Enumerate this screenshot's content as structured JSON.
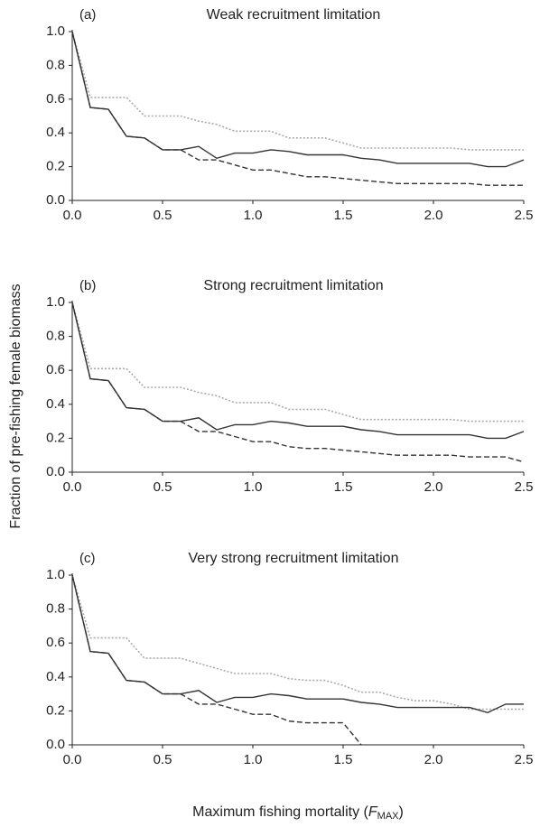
{
  "chart_data": [
    {
      "type": "line",
      "label": "(a)",
      "title": "Weak recruitment limitation",
      "x": [
        0,
        0.1,
        0.2,
        0.3,
        0.4,
        0.5,
        0.6,
        0.7,
        0.8,
        0.9,
        1.0,
        1.1,
        1.2,
        1.3,
        1.4,
        1.5,
        1.6,
        1.7,
        1.8,
        1.9,
        2.0,
        2.1,
        2.2,
        2.3,
        2.4,
        2.5
      ],
      "series": [
        {
          "color": "#aaaaaa",
          "style": "dotted",
          "values": [
            1.0,
            0.61,
            0.61,
            0.61,
            0.5,
            0.5,
            0.5,
            0.47,
            0.45,
            0.41,
            0.41,
            0.41,
            0.37,
            0.37,
            0.37,
            0.34,
            0.31,
            0.31,
            0.31,
            0.31,
            0.31,
            0.31,
            0.3,
            0.3,
            0.3,
            0.3
          ]
        },
        {
          "color": "#333333",
          "style": "dashed",
          "values": [
            1.0,
            0.55,
            0.54,
            0.38,
            0.37,
            0.3,
            0.3,
            0.24,
            0.24,
            0.21,
            0.18,
            0.18,
            0.16,
            0.14,
            0.14,
            0.13,
            0.12,
            0.11,
            0.1,
            0.1,
            0.1,
            0.1,
            0.1,
            0.09,
            0.09,
            0.09
          ]
        },
        {
          "color": "#333333",
          "style": "solid",
          "values": [
            1.0,
            0.55,
            0.54,
            0.38,
            0.37,
            0.3,
            0.3,
            0.32,
            0.25,
            0.28,
            0.28,
            0.3,
            0.29,
            0.27,
            0.27,
            0.27,
            0.25,
            0.24,
            0.22,
            0.22,
            0.22,
            0.22,
            0.22,
            0.2,
            0.2,
            0.24
          ]
        }
      ],
      "xlim": [
        0,
        2.5
      ],
      "ylim": [
        0,
        1
      ],
      "xticks": [
        {
          "value": 0,
          "label": "0.0"
        },
        0.5,
        {
          "value": 1,
          "label": "1.0"
        },
        1.5,
        {
          "value": 2,
          "label": "2.0"
        },
        2.5
      ],
      "yticks": [
        {
          "value": 0,
          "label": "0.0"
        },
        0.2,
        0.4,
        0.6,
        0.8,
        {
          "value": 1,
          "label": "1.0"
        }
      ]
    },
    {
      "type": "line",
      "label": "(b)",
      "title": "Strong recruitment limitation",
      "x": [
        0,
        0.1,
        0.2,
        0.3,
        0.4,
        0.5,
        0.6,
        0.7,
        0.8,
        0.9,
        1.0,
        1.1,
        1.2,
        1.3,
        1.4,
        1.5,
        1.6,
        1.7,
        1.8,
        1.9,
        2.0,
        2.1,
        2.2,
        2.3,
        2.4,
        2.5
      ],
      "series": [
        {
          "color": "#aaaaaa",
          "style": "dotted",
          "values": [
            1.0,
            0.61,
            0.61,
            0.61,
            0.5,
            0.5,
            0.5,
            0.47,
            0.45,
            0.41,
            0.41,
            0.41,
            0.37,
            0.37,
            0.37,
            0.34,
            0.31,
            0.31,
            0.31,
            0.31,
            0.31,
            0.31,
            0.3,
            0.3,
            0.3,
            0.3
          ]
        },
        {
          "color": "#333333",
          "style": "dashed",
          "values": [
            1.0,
            0.55,
            0.54,
            0.38,
            0.37,
            0.3,
            0.3,
            0.24,
            0.24,
            0.21,
            0.18,
            0.18,
            0.15,
            0.14,
            0.14,
            0.13,
            0.12,
            0.11,
            0.1,
            0.1,
            0.1,
            0.1,
            0.09,
            0.09,
            0.09,
            0.06
          ]
        },
        {
          "color": "#333333",
          "style": "solid",
          "values": [
            1.0,
            0.55,
            0.54,
            0.38,
            0.37,
            0.3,
            0.3,
            0.32,
            0.25,
            0.28,
            0.28,
            0.3,
            0.29,
            0.27,
            0.27,
            0.27,
            0.25,
            0.24,
            0.22,
            0.22,
            0.22,
            0.22,
            0.22,
            0.2,
            0.2,
            0.24
          ]
        }
      ],
      "xlim": [
        0,
        2.5
      ],
      "ylim": [
        0,
        1
      ],
      "xticks": [
        {
          "value": 0,
          "label": "0.0"
        },
        0.5,
        {
          "value": 1,
          "label": "1.0"
        },
        1.5,
        {
          "value": 2,
          "label": "2.0"
        },
        2.5
      ],
      "yticks": [
        {
          "value": 0,
          "label": "0.0"
        },
        0.2,
        0.4,
        0.6,
        0.8,
        {
          "value": 1,
          "label": "1.0"
        }
      ]
    },
    {
      "type": "line",
      "label": "(c)",
      "title": "Very strong recruitment limitation",
      "x": [
        0,
        0.1,
        0.2,
        0.3,
        0.4,
        0.5,
        0.6,
        0.7,
        0.8,
        0.9,
        1.0,
        1.1,
        1.2,
        1.3,
        1.4,
        1.5,
        1.6,
        1.7,
        1.8,
        1.9,
        2.0,
        2.1,
        2.2,
        2.3,
        2.4,
        2.5
      ],
      "series": [
        {
          "color": "#aaaaaa",
          "style": "dotted",
          "values": [
            1.0,
            0.63,
            0.63,
            0.63,
            0.51,
            0.51,
            0.51,
            0.48,
            0.45,
            0.42,
            0.42,
            0.42,
            0.39,
            0.38,
            0.38,
            0.35,
            0.31,
            0.31,
            0.28,
            0.26,
            0.26,
            0.24,
            0.21,
            0.21,
            0.21,
            0.21
          ]
        },
        {
          "color": "#333333",
          "style": "dashed",
          "values": [
            1.0,
            0.55,
            0.54,
            0.38,
            0.37,
            0.3,
            0.3,
            0.24,
            0.24,
            0.21,
            0.18,
            0.18,
            0.14,
            0.13,
            0.13,
            0.13,
            0.0,
            null,
            null,
            null,
            null,
            null,
            null,
            null,
            null,
            null
          ]
        },
        {
          "color": "#333333",
          "style": "solid",
          "values": [
            1.0,
            0.55,
            0.54,
            0.38,
            0.37,
            0.3,
            0.3,
            0.32,
            0.25,
            0.28,
            0.28,
            0.3,
            0.29,
            0.27,
            0.27,
            0.27,
            0.25,
            0.24,
            0.22,
            0.22,
            0.22,
            0.22,
            0.22,
            0.19,
            0.24,
            0.24
          ]
        }
      ],
      "xlim": [
        0,
        2.5
      ],
      "ylim": [
        0,
        1
      ],
      "xticks": [
        {
          "value": 0,
          "label": "0.0"
        },
        0.5,
        {
          "value": 1,
          "label": "1.0"
        },
        1.5,
        {
          "value": 2,
          "label": "2.0"
        },
        2.5
      ],
      "yticks": [
        {
          "value": 0,
          "label": "0.0"
        },
        0.2,
        0.4,
        0.6,
        0.8,
        {
          "value": 1,
          "label": "1.0"
        }
      ]
    }
  ],
  "ylabel": "Fraction of pre-fishing female biomass",
  "xlabel": [
    "Maximum fishing mortality (",
    "F",
    "MAX",
    ")"
  ]
}
